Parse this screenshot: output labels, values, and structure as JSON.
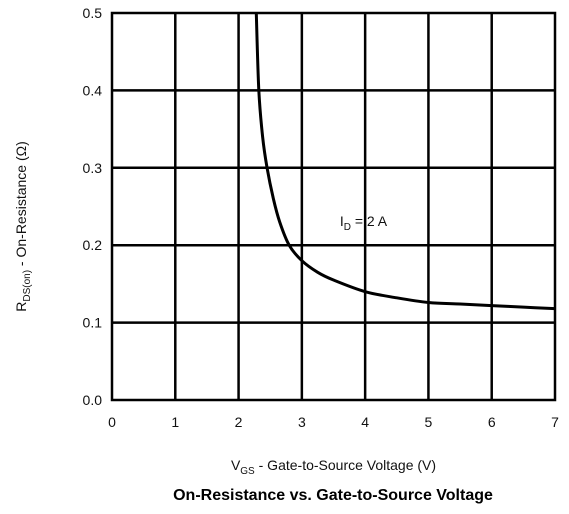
{
  "chart_data": {
    "type": "line",
    "title": "On-Resistance vs. Gate-to-Source Voltage",
    "xlabel": {
      "main": "V",
      "sub": "GS",
      "rest": " - Gate-to-Source Voltage (V)"
    },
    "ylabel": {
      "main": "R",
      "sub": "DS(on)",
      "rest": " - On-Resistance (Ω)"
    },
    "xlim": [
      0,
      7
    ],
    "ylim": [
      0,
      0.5
    ],
    "x_ticks": [
      "0",
      "1",
      "2",
      "3",
      "4",
      "5",
      "6",
      "7"
    ],
    "y_ticks": [
      "0.0",
      "0.1",
      "0.2",
      "0.3",
      "0.4",
      "0.5"
    ],
    "grid": true,
    "annotation": {
      "main": "I",
      "sub": "D",
      "rest": " = 2 A"
    },
    "series": [
      {
        "x": [
          2.28,
          2.32,
          2.38,
          2.45,
          2.55,
          2.65,
          2.8,
          3.0,
          3.25,
          3.5,
          4.0,
          4.5,
          5.0,
          5.5,
          6.0,
          6.5,
          7.0
        ],
        "y": [
          0.5,
          0.4,
          0.34,
          0.3,
          0.26,
          0.23,
          0.2,
          0.18,
          0.165,
          0.155,
          0.14,
          0.132,
          0.126,
          0.124,
          0.122,
          0.12,
          0.118
        ]
      }
    ]
  }
}
